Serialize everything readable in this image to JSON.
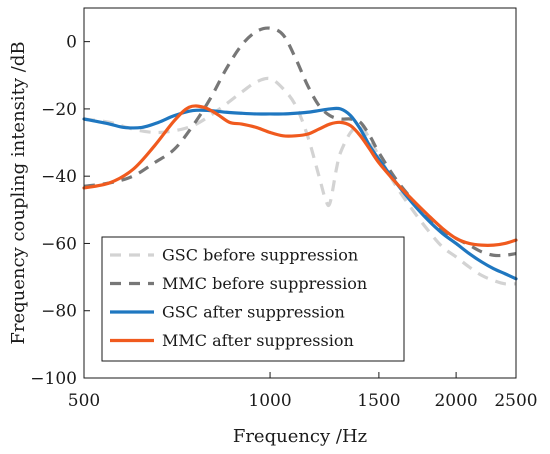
{
  "chart_data": {
    "type": "line",
    "title": "",
    "xlabel": "Frequency /Hz",
    "ylabel": "Frequency coupling intensity /dB",
    "x_scale": "log",
    "xlim": [
      500,
      2500
    ],
    "ylim": [
      -100,
      10
    ],
    "x_ticks": [
      500,
      1000,
      1500,
      2000,
      2500
    ],
    "y_ticks": [
      0,
      -20,
      -40,
      -60,
      -80,
      -100
    ],
    "legend_position": "bottom-left",
    "grid": false,
    "series": [
      {
        "name": "GSC before suppression",
        "color": "#d3d3d3",
        "dash": "dashed",
        "x": [
          500,
          550,
          600,
          650,
          700,
          750,
          800,
          850,
          900,
          950,
          1000,
          1050,
          1100,
          1150,
          1200,
          1230,
          1250,
          1280,
          1300,
          1350,
          1400,
          1450,
          1500,
          1600,
          1700,
          1800,
          1900,
          2000,
          2100,
          2200,
          2300,
          2400,
          2500
        ],
        "y": [
          -23,
          -24,
          -26,
          -27,
          -26.5,
          -25,
          -22,
          -18.5,
          -15,
          -12,
          -11,
          -14,
          -19,
          -28,
          -40,
          -47,
          -48,
          -38,
          -33,
          -27,
          -25,
          -29,
          -34,
          -43,
          -50,
          -56,
          -61,
          -64,
          -67,
          -69.5,
          -71,
          -72,
          -72
        ]
      },
      {
        "name": "MMC before suppression",
        "color": "#777777",
        "dash": "dashed",
        "x": [
          500,
          550,
          600,
          650,
          700,
          750,
          800,
          850,
          900,
          950,
          1000,
          1050,
          1100,
          1150,
          1200,
          1250,
          1300,
          1350,
          1400,
          1450,
          1500,
          1600,
          1700,
          1800,
          1900,
          2000,
          2100,
          2200,
          2300,
          2400,
          2500
        ],
        "y": [
          -43,
          -42,
          -40,
          -36,
          -32,
          -25,
          -17,
          -8,
          -1,
          3,
          4,
          2,
          -5,
          -13,
          -19,
          -22,
          -23,
          -23,
          -24,
          -28,
          -33,
          -41,
          -47,
          -52,
          -56,
          -58.5,
          -60.5,
          -62.5,
          -63.5,
          -63.5,
          -63
        ]
      },
      {
        "name": "GSC after suppression",
        "color": "#1f77c0",
        "dash": "solid",
        "x": [
          500,
          550,
          580,
          620,
          660,
          700,
          750,
          800,
          850,
          900,
          950,
          1000,
          1050,
          1100,
          1150,
          1200,
          1250,
          1300,
          1350,
          1400,
          1450,
          1500,
          1600,
          1700,
          1800,
          1900,
          2000,
          2100,
          2200,
          2300,
          2400,
          2500
        ],
        "y": [
          -23,
          -24.5,
          -25.5,
          -25.5,
          -24,
          -22,
          -20.5,
          -20.5,
          -21,
          -21.3,
          -21.5,
          -21.5,
          -21.5,
          -21.3,
          -21,
          -20.5,
          -20,
          -20,
          -22,
          -26,
          -31,
          -35,
          -42,
          -48,
          -53,
          -57,
          -60,
          -63,
          -65.5,
          -67.5,
          -69,
          -70.5
        ]
      },
      {
        "name": "MMC after suppression",
        "color": "#f05a1e",
        "dash": "solid",
        "x": [
          500,
          550,
          600,
          650,
          700,
          740,
          780,
          820,
          860,
          900,
          950,
          1000,
          1050,
          1100,
          1150,
          1200,
          1250,
          1300,
          1350,
          1400,
          1450,
          1500,
          1600,
          1700,
          1800,
          1900,
          2000,
          2100,
          2200,
          2300,
          2400,
          2500
        ],
        "y": [
          -43.5,
          -42,
          -38,
          -31,
          -23.5,
          -19.5,
          -19.5,
          -21.5,
          -24,
          -24.5,
          -25.5,
          -27,
          -28,
          -28,
          -27.5,
          -26,
          -24.5,
          -24,
          -25,
          -28,
          -32,
          -36,
          -42,
          -47,
          -51.5,
          -55.5,
          -58.5,
          -60,
          -60.5,
          -60.5,
          -60,
          -59
        ]
      }
    ]
  }
}
